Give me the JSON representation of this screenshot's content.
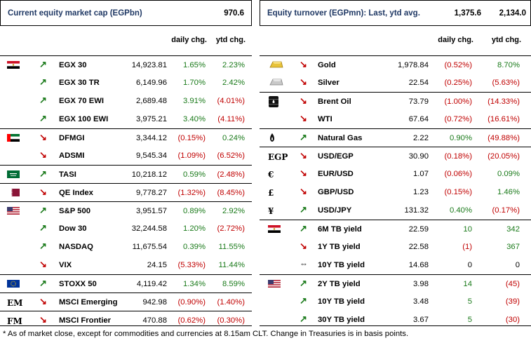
{
  "left": {
    "title": "Current equity market cap (EGPbn)",
    "value": "970.6",
    "col_daily": "daily chg.",
    "col_ytd": "ytd chg.",
    "rows": [
      {
        "icon": "egypt-flag-icon",
        "dir": "up",
        "name": "EGX 30",
        "val": "14,923.81",
        "daily": "1.65%",
        "ytd": "2.23%",
        "dc": "pos",
        "yc": "pos",
        "grp": true
      },
      {
        "icon": "",
        "dir": "up",
        "name": "EGX 30 TR",
        "val": "6,149.96",
        "daily": "1.70%",
        "ytd": "2.42%",
        "dc": "pos",
        "yc": "pos"
      },
      {
        "icon": "",
        "dir": "up",
        "name": "EGX 70 EWI",
        "val": "2,689.48",
        "daily": "3.91%",
        "ytd": "(4.01%)",
        "dc": "pos",
        "yc": "neg"
      },
      {
        "icon": "",
        "dir": "up",
        "name": "EGX 100 EWI",
        "val": "3,975.21",
        "daily": "3.40%",
        "ytd": "(4.11%)",
        "dc": "pos",
        "yc": "neg"
      },
      {
        "icon": "uae-flag-icon",
        "dir": "dn",
        "name": "DFMGI",
        "val": "3,344.12",
        "daily": "(0.15%)",
        "ytd": "0.24%",
        "dc": "neg",
        "yc": "pos",
        "grp": true
      },
      {
        "icon": "",
        "dir": "dn",
        "name": "ADSMI",
        "val": "9,545.34",
        "daily": "(1.09%)",
        "ytd": "(6.52%)",
        "dc": "neg",
        "yc": "neg"
      },
      {
        "icon": "saudi-flag-icon",
        "dir": "up",
        "name": "TASI",
        "val": "10,218.12",
        "daily": "0.59%",
        "ytd": "(2.48%)",
        "dc": "pos",
        "yc": "neg",
        "grp": true
      },
      {
        "icon": "qatar-flag-icon",
        "dir": "dn",
        "name": "QE Index",
        "val": "9,778.27",
        "daily": "(1.32%)",
        "ytd": "(8.45%)",
        "dc": "neg",
        "yc": "neg",
        "grp": true
      },
      {
        "icon": "us-flag-icon",
        "dir": "up",
        "name": "S&P 500",
        "val": "3,951.57",
        "daily": "0.89%",
        "ytd": "2.92%",
        "dc": "pos",
        "yc": "pos",
        "grp": true
      },
      {
        "icon": "",
        "dir": "up",
        "name": "Dow 30",
        "val": "32,244.58",
        "daily": "1.20%",
        "ytd": "(2.72%)",
        "dc": "pos",
        "yc": "neg"
      },
      {
        "icon": "",
        "dir": "up",
        "name": "NASDAQ",
        "val": "11,675.54",
        "daily": "0.39%",
        "ytd": "11.55%",
        "dc": "pos",
        "yc": "pos"
      },
      {
        "icon": "",
        "dir": "dn",
        "name": "VIX",
        "val": "24.15",
        "daily": "(5.33%)",
        "ytd": "11.44%",
        "dc": "neg",
        "yc": "pos"
      },
      {
        "icon": "eu-flag-icon",
        "dir": "up",
        "name": "STOXX 50",
        "val": "4,119.42",
        "daily": "1.34%",
        "ytd": "8.59%",
        "dc": "pos",
        "yc": "pos",
        "grp": true
      },
      {
        "icon": "em-text-icon",
        "icontext": "EM",
        "dir": "dn",
        "name": "MSCI Emerging",
        "val": "942.98",
        "daily": "(0.90%)",
        "ytd": "(1.40%)",
        "dc": "neg",
        "yc": "neg",
        "grp": true
      },
      {
        "icon": "fm-text-icon",
        "icontext": "FM",
        "dir": "dn",
        "name": "MSCI Frontier",
        "val": "470.88",
        "daily": "(0.62%)",
        "ytd": "(0.30%)",
        "dc": "neg",
        "yc": "neg",
        "grp": true
      }
    ]
  },
  "right": {
    "title": "Equity turnover (EGPmn): Last, ytd avg.",
    "value1": "1,375.6",
    "value2": "2,134.0",
    "col_daily": "daily chg.",
    "col_ytd": "ytd chg.",
    "rows": [
      {
        "icon": "gold-bar-icon",
        "dir": "dn",
        "name": "Gold",
        "val": "1,978.84",
        "daily": "(0.52%)",
        "ytd": "8.70%",
        "dc": "neg",
        "yc": "pos",
        "grp": true
      },
      {
        "icon": "silver-bar-icon",
        "dir": "dn",
        "name": "Silver",
        "val": "22.54",
        "daily": "(0.25%)",
        "ytd": "(5.63%)",
        "dc": "neg",
        "yc": "neg"
      },
      {
        "icon": "oil-barrel-icon",
        "dir": "dn",
        "name": "Brent Oil",
        "val": "73.79",
        "daily": "(1.00%)",
        "ytd": "(14.33%)",
        "dc": "neg",
        "yc": "neg",
        "grp": true
      },
      {
        "icon": "",
        "dir": "dn",
        "name": "WTI",
        "val": "67.64",
        "daily": "(0.72%)",
        "ytd": "(16.61%)",
        "dc": "neg",
        "yc": "neg"
      },
      {
        "icon": "flame-icon",
        "dir": "up",
        "name": "Natural Gas",
        "val": "2.22",
        "daily": "0.90%",
        "ytd": "(49.88%)",
        "dc": "pos",
        "yc": "neg",
        "grp": true
      },
      {
        "icon": "egp-text-icon",
        "icontext": "EGP",
        "dir": "dn",
        "name": "USD/EGP",
        "val": "30.90",
        "daily": "(0.18%)",
        "ytd": "(20.05%)",
        "dc": "neg",
        "yc": "neg",
        "grp": true
      },
      {
        "icon": "euro-sign-icon",
        "icontext": "€",
        "dir": "dn",
        "name": "EUR/USD",
        "val": "1.07",
        "daily": "(0.06%)",
        "ytd": "0.09%",
        "dc": "neg",
        "yc": "pos"
      },
      {
        "icon": "pound-sign-icon",
        "icontext": "£",
        "dir": "dn",
        "name": "GBP/USD",
        "val": "1.23",
        "daily": "(0.15%)",
        "ytd": "1.46%",
        "dc": "neg",
        "yc": "pos"
      },
      {
        "icon": "yen-sign-icon",
        "icontext": "¥",
        "dir": "up",
        "name": "USD/JPY",
        "val": "131.32",
        "daily": "0.40%",
        "ytd": "(0.17%)",
        "dc": "pos",
        "yc": "neg"
      },
      {
        "icon": "egypt-flag-icon",
        "dir": "up",
        "name": "6M TB yield",
        "val": "22.59",
        "daily": "10",
        "ytd": "342",
        "dc": "pos",
        "yc": "pos",
        "grp": true
      },
      {
        "icon": "",
        "dir": "dn",
        "name": "1Y TB yield",
        "val": "22.58",
        "daily": "(1)",
        "ytd": "367",
        "dc": "neg",
        "yc": "pos"
      },
      {
        "icon": "",
        "dir": "flat",
        "name": "10Y TB yield",
        "val": "14.68",
        "daily": "0",
        "ytd": "0",
        "dc": "neu",
        "yc": "neu"
      },
      {
        "icon": "us-flag-icon",
        "dir": "up",
        "name": "2Y TB yield",
        "val": "3.98",
        "daily": "14",
        "ytd": "(45)",
        "dc": "pos",
        "yc": "neg",
        "grp": true
      },
      {
        "icon": "",
        "dir": "up",
        "name": "10Y TB yield",
        "val": "3.48",
        "daily": "5",
        "ytd": "(39)",
        "dc": "pos",
        "yc": "neg"
      },
      {
        "icon": "",
        "dir": "up",
        "name": "30Y TB yield",
        "val": "3.67",
        "daily": "5",
        "ytd": "(30)",
        "dc": "pos",
        "yc": "neg"
      }
    ]
  },
  "footnote": "* As of market close, except for commodities and currencies at 8.15am CLT. Change in Treasuries is in basis points.",
  "colors": {
    "positive": "#1a7a1a",
    "negative": "#c00000",
    "title": "#1f3864"
  }
}
